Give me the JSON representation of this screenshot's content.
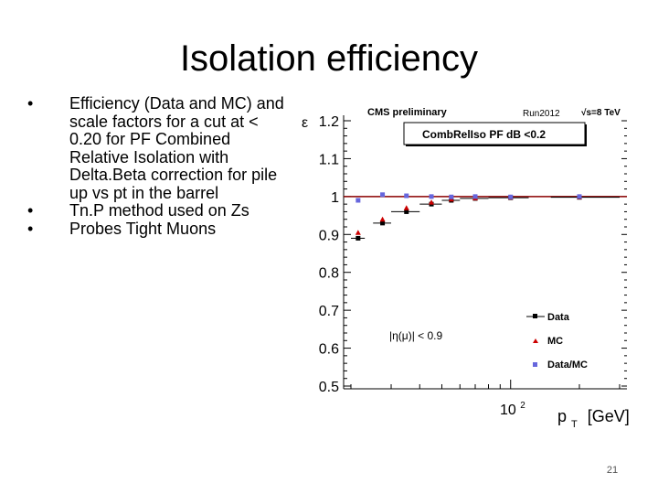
{
  "slide": {
    "title": "Isolation efficiency",
    "bullets": [
      "Efficiency (Data and MC) and scale factors for a cut at < 0.20 for PF Combined Relative Isolation with Delta.Beta correction for pile up vs pt in the barrel",
      "Tn.P method used on Zs",
      "Probes Tight Muons"
    ],
    "bullet_symbol": "•",
    "page_number": "21"
  },
  "chart_data": {
    "type": "scatter",
    "title": "CMS preliminary",
    "run_label": "Run2012",
    "energy_label": "√s=8 TeV",
    "cut_label": "CombRelIso PF dB <0.2",
    "eta_label": "|η(μ)| < 0.9",
    "ylabel": "ε",
    "xlabel": "p",
    "xlabel_sub": "T",
    "xlabel_unit": "[GeV]",
    "x_scale": "log",
    "xlim": [
      20,
      300
    ],
    "ylim": [
      0.5,
      1.2
    ],
    "yticks": [
      0.5,
      0.6,
      0.7,
      0.8,
      0.9,
      1.0,
      1.1,
      1.2
    ],
    "ytick_labels": [
      "0.5",
      "0.6",
      "0.7",
      "0.8",
      "0.9",
      "1",
      "1.1",
      "1.2"
    ],
    "xtick_label_base": "10",
    "xtick_label_exp": "2",
    "xtick_value": 100,
    "reference_line": 1.0,
    "legend": [
      "Data",
      "MC",
      "Data/MC"
    ],
    "series": [
      {
        "name": "Data",
        "color": "#000000",
        "marker": "square",
        "x": [
          21.5,
          27.5,
          35,
          45,
          55,
          70,
          100,
          200
        ],
        "xerr_lo": [
          1.5,
          2.5,
          5,
          5,
          5,
          10,
          20,
          50
        ],
        "xerr_hi": [
          1.5,
          2.5,
          5,
          5,
          5,
          10,
          20,
          100
        ],
        "y": [
          0.89,
          0.93,
          0.96,
          0.98,
          0.99,
          0.995,
          0.997,
          0.998
        ]
      },
      {
        "name": "MC",
        "color": "#cc0000",
        "marker": "triangle",
        "x": [
          21.5,
          27.5,
          35,
          45,
          55,
          70,
          100,
          200
        ],
        "y": [
          0.905,
          0.94,
          0.97,
          0.985,
          0.993,
          0.996,
          0.998,
          0.999
        ]
      },
      {
        "name": "Data/MC",
        "color": "#6666dd",
        "marker": "square",
        "x": [
          21.5,
          27.5,
          35,
          45,
          55,
          70,
          100,
          200
        ],
        "y": [
          0.99,
          1.005,
          1.002,
          1.0,
          0.999,
          1.0,
          0.999,
          1.0
        ]
      }
    ]
  }
}
